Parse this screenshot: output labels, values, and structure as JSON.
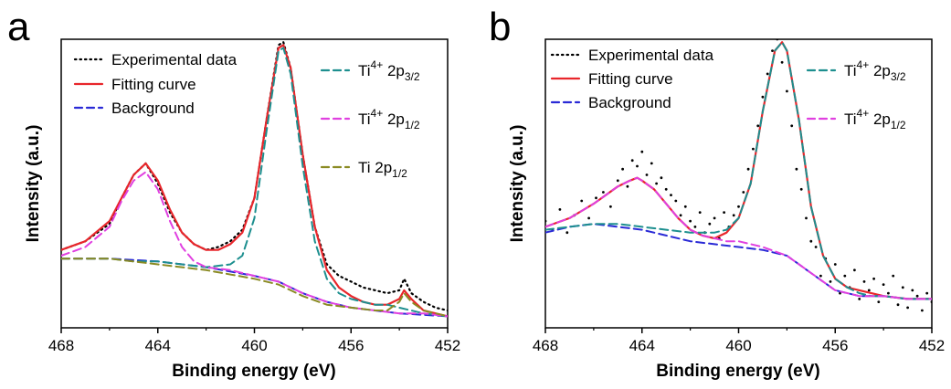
{
  "chart_data": [
    {
      "panel": "a",
      "type": "line",
      "xlabel": "Binding energy (eV)",
      "ylabel": "Intensity (a.u.)",
      "xlim": [
        468,
        452
      ],
      "x_ticks": [
        "468",
        "464",
        "460",
        "456",
        "452"
      ],
      "ylim": [
        0,
        100
      ],
      "y_ticks_shown": false,
      "legend": [
        {
          "label": "Experimental data",
          "style": "dotted",
          "color": "#000000"
        },
        {
          "label": "Fitting curve",
          "style": "solid",
          "color": "#e8262b"
        },
        {
          "label": "Background",
          "style": "dashed",
          "color": "#2a2ad6"
        },
        {
          "label_main": "Ti",
          "label_sup": "4+",
          "label_rest": " 2p",
          "label_sub": "3/2",
          "style": "dashed",
          "color": "#1d8f8f"
        },
        {
          "label_main": "Ti",
          "label_sup": "4+",
          "label_rest": " 2p",
          "label_sub": "1/2",
          "style": "dashed",
          "color": "#e040e0"
        },
        {
          "label_main": "Ti",
          "label_sup": "",
          "label_rest": " 2p",
          "label_sub": "1/2",
          "style": "dashed",
          "color": "#8a8a22"
        }
      ],
      "series": [
        {
          "name": "Experimental data",
          "style": "dotted",
          "color": "#000000",
          "x": [
            468,
            467,
            466,
            465.5,
            465,
            464.5,
            464,
            463.5,
            463,
            462.5,
            462,
            461.5,
            461,
            460.5,
            460,
            459.5,
            459,
            458.8,
            458.5,
            458,
            457.5,
            457,
            456.5,
            456,
            455.5,
            455,
            454.5,
            454,
            453.8,
            453.5,
            453,
            452.5,
            452
          ],
          "y": [
            27,
            30,
            36,
            45,
            53,
            57,
            50,
            40,
            33,
            29,
            27,
            28,
            30,
            34,
            45,
            72,
            98,
            99,
            90,
            60,
            35,
            22,
            18,
            16,
            14,
            13,
            12,
            13,
            17,
            12,
            9,
            7,
            6
          ]
        },
        {
          "name": "Fitting curve",
          "style": "solid",
          "color": "#e8262b",
          "x": [
            468,
            467,
            466,
            465.5,
            465,
            464.5,
            464,
            463.5,
            463,
            462.5,
            462,
            461.5,
            461,
            460.5,
            460,
            459.5,
            459,
            458.8,
            458.5,
            458,
            457.5,
            457,
            456.5,
            456,
            455.5,
            455,
            454.5,
            454,
            453.8,
            453.5,
            453,
            452.5,
            452
          ],
          "y": [
            27,
            30,
            37,
            45,
            53,
            57,
            51,
            41,
            33,
            29,
            27,
            27,
            29,
            33,
            45,
            72,
            97,
            98,
            90,
            60,
            35,
            20,
            14,
            11,
            9,
            8,
            8,
            10,
            13,
            10,
            6,
            5,
            4
          ]
        },
        {
          "name": "Background",
          "style": "dashed",
          "color": "#2a2ad6",
          "x": [
            468,
            466,
            464,
            462,
            460,
            459,
            458,
            457,
            456,
            454,
            452
          ],
          "y": [
            24,
            24,
            23,
            21,
            18,
            16,
            12,
            9,
            7,
            5,
            4
          ]
        },
        {
          "name": "Ti4+ 2p3/2",
          "style": "dashed",
          "color": "#1d8f8f",
          "x": [
            468,
            466,
            465,
            464,
            463,
            462,
            461,
            460.5,
            460,
            459.5,
            459,
            458.8,
            458.5,
            458,
            457.5,
            457,
            456.5,
            456,
            455.5,
            455,
            454.5,
            454,
            453,
            452
          ],
          "y": [
            24,
            24,
            23,
            23,
            22,
            21,
            22,
            25,
            38,
            68,
            96,
            97,
            88,
            56,
            30,
            17,
            12,
            10,
            9,
            8,
            8,
            7,
            5,
            4
          ]
        },
        {
          "name": "Ti4+ 2p1/2",
          "style": "dashed",
          "color": "#e040e0",
          "x": [
            468,
            467,
            466,
            465.5,
            465,
            464.5,
            464,
            463.5,
            463,
            462.5,
            462,
            461,
            460,
            459,
            458,
            457,
            456,
            455,
            454,
            453,
            452
          ],
          "y": [
            25,
            28,
            35,
            44,
            51,
            54,
            48,
            37,
            28,
            23,
            21,
            20,
            18,
            16,
            12,
            9,
            7,
            6,
            5,
            5,
            4
          ]
        },
        {
          "name": "Ti 2p1/2",
          "style": "dashed",
          "color": "#8a8a22",
          "x": [
            468,
            466,
            464,
            462,
            460,
            459,
            458,
            457,
            456,
            455,
            454.5,
            454,
            453.8,
            453.5,
            453,
            452.5,
            452
          ],
          "y": [
            24,
            24,
            22,
            20,
            17,
            15,
            11,
            8,
            7,
            6,
            6,
            9,
            12,
            9,
            6,
            5,
            4
          ]
        }
      ]
    },
    {
      "panel": "b",
      "type": "line",
      "xlabel": "Binding energy (eV)",
      "ylabel": "Intensity (a.u.)",
      "xlim": [
        468,
        452
      ],
      "x_ticks": [
        "468",
        "464",
        "460",
        "456",
        "452"
      ],
      "ylim": [
        0,
        100
      ],
      "y_ticks_shown": false,
      "legend": [
        {
          "label": "Experimental data",
          "style": "dotted",
          "color": "#000000"
        },
        {
          "label": "Fitting curve",
          "style": "solid",
          "color": "#e8262b"
        },
        {
          "label": "Background",
          "style": "dashed",
          "color": "#2a2ad6"
        },
        {
          "label_main": "Ti",
          "label_sup": "4+",
          "label_rest": " 2p",
          "label_sub": "3/2",
          "style": "dashed",
          "color": "#1d8f8f"
        },
        {
          "label_main": "Ti",
          "label_sup": "4+",
          "label_rest": " 2p",
          "label_sub": "1/2",
          "style": "dashed",
          "color": "#e040e0"
        }
      ],
      "series": [
        {
          "name": "Experimental data",
          "style": "scatter",
          "color": "#000000",
          "x": [
            468,
            467.7,
            467.4,
            467.1,
            466.8,
            466.5,
            466.2,
            465.9,
            465.6,
            465.3,
            465,
            464.8,
            464.6,
            464.4,
            464.2,
            464,
            463.8,
            463.6,
            463.4,
            463.2,
            463,
            462.8,
            462.6,
            462.4,
            462.2,
            462,
            461.8,
            461.6,
            461.4,
            461.2,
            461,
            460.8,
            460.6,
            460.4,
            460.2,
            460,
            459.8,
            459.6,
            459.4,
            459.2,
            459,
            458.8,
            458.6,
            458.4,
            458.2,
            458,
            457.8,
            457.6,
            457.4,
            457.2,
            457,
            456.8,
            456.6,
            456.4,
            456.2,
            456,
            455.8,
            455.6,
            455.4,
            455.2,
            455,
            454.8,
            454.6,
            454.4,
            454.2,
            454,
            453.8,
            453.6,
            453.4,
            453.2,
            453,
            452.8,
            452.6,
            452.4,
            452.2,
            452
          ],
          "y": [
            37,
            34,
            41,
            33,
            39,
            44,
            38,
            45,
            47,
            42,
            51,
            55,
            49,
            58,
            56,
            61,
            53,
            57,
            50,
            52,
            48,
            46,
            44,
            39,
            42,
            37,
            35,
            40,
            33,
            36,
            38,
            31,
            40,
            35,
            39,
            42,
            47,
            55,
            62,
            70,
            80,
            88,
            96,
            100,
            92,
            82,
            70,
            55,
            48,
            38,
            30,
            28,
            18,
            24,
            16,
            22,
            12,
            18,
            14,
            20,
            10,
            16,
            13,
            17,
            9,
            15,
            12,
            18,
            8,
            14,
            7,
            13,
            11,
            6,
            12,
            9
          ]
        },
        {
          "name": "Fitting curve",
          "style": "solid",
          "color": "#e8262b",
          "x": [
            468,
            467,
            466,
            465,
            464.5,
            464.2,
            464,
            463.5,
            463,
            462.5,
            462,
            461.5,
            461,
            460.5,
            460,
            459.5,
            459,
            458.5,
            458.2,
            458,
            457.5,
            457,
            456.5,
            456,
            455.5,
            455,
            454.5,
            454,
            453,
            452
          ],
          "y": [
            35,
            38,
            43,
            49,
            51,
            52,
            51,
            48,
            43,
            38,
            34,
            32,
            31,
            33,
            38,
            50,
            75,
            96,
            99,
            96,
            72,
            42,
            25,
            17,
            14,
            13,
            12,
            11,
            10,
            10
          ]
        },
        {
          "name": "Background",
          "style": "dashed",
          "color": "#2a2ad6",
          "x": [
            468,
            467,
            466,
            465,
            464,
            463,
            462,
            461,
            460,
            459,
            458,
            457,
            456,
            455,
            454,
            453,
            452
          ],
          "y": [
            33,
            35,
            36,
            35,
            34,
            32,
            30,
            29,
            28,
            27,
            25,
            19,
            13,
            11,
            11,
            10,
            10
          ]
        },
        {
          "name": "Ti4+ 2p3/2",
          "style": "dashed",
          "color": "#1d8f8f",
          "x": [
            468,
            467,
            466,
            465,
            464,
            463,
            462,
            461,
            460.5,
            460,
            459.5,
            459,
            458.5,
            458.2,
            458,
            457.5,
            457,
            456.5,
            456,
            455.5,
            455,
            454.5,
            454,
            453,
            452
          ],
          "y": [
            34,
            35,
            36,
            36,
            35,
            34,
            33,
            33,
            34,
            38,
            50,
            75,
            96,
            99,
            96,
            72,
            42,
            25,
            17,
            14,
            12,
            11,
            11,
            10,
            10
          ]
        },
        {
          "name": "Ti4+ 2p1/2",
          "style": "dashed",
          "color": "#e040e0",
          "x": [
            468,
            467,
            466,
            465,
            464.5,
            464.2,
            464,
            463.5,
            463,
            462.5,
            462,
            461.5,
            461,
            460.5,
            460,
            459,
            458,
            457,
            456,
            455,
            454,
            453,
            452
          ],
          "y": [
            35,
            38,
            43,
            49,
            51,
            52,
            51,
            48,
            43,
            38,
            34,
            32,
            31,
            30,
            30,
            28,
            25,
            19,
            13,
            11,
            11,
            10,
            10
          ]
        }
      ]
    }
  ]
}
